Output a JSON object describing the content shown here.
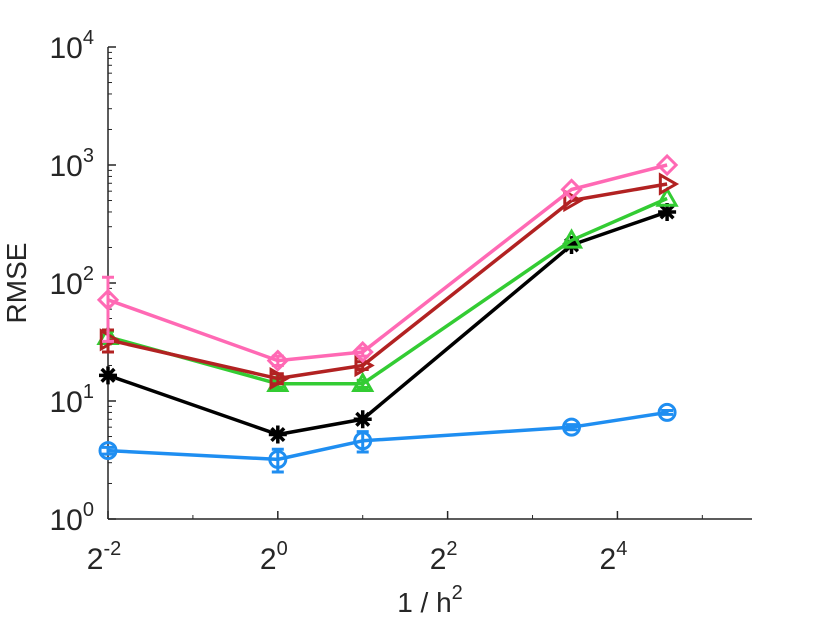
{
  "chart_data": {
    "type": "line",
    "title": "",
    "xlabel": {
      "base": "1 / h",
      "sup": "2"
    },
    "ylabel": "RMSE",
    "xscale": "log2",
    "yscale": "log10",
    "xlim": [
      0.25,
      48
    ],
    "ylim": [
      1,
      10000
    ],
    "grid": false,
    "xticks": [
      {
        "value": 0.25,
        "base": "2",
        "exp": "-2"
      },
      {
        "value": 1,
        "base": "2",
        "exp": "0"
      },
      {
        "value": 4,
        "base": "2",
        "exp": "2"
      },
      {
        "value": 16,
        "base": "2",
        "exp": "4"
      }
    ],
    "yticks": [
      {
        "value": 1,
        "base": "10",
        "exp": "0"
      },
      {
        "value": 10,
        "base": "10",
        "exp": "1"
      },
      {
        "value": 100,
        "base": "10",
        "exp": "2"
      },
      {
        "value": 1000,
        "base": "10",
        "exp": "3"
      },
      {
        "value": 10000,
        "base": "10",
        "exp": "4"
      }
    ],
    "x": [
      0.25,
      1,
      2,
      11,
      24
    ],
    "series": [
      {
        "name": "series-blue-circle",
        "color": "#1f8ef1",
        "marker": "circle",
        "values": [
          3.8,
          3.2,
          4.6,
          6.0,
          8.0
        ],
        "err": [
          0.25,
          0.7,
          0.9,
          0.3,
          0.3
        ]
      },
      {
        "name": "series-black-asterisk",
        "color": "#000000",
        "marker": "asterisk",
        "values": [
          16.5,
          5.2,
          7.0,
          210,
          400
        ],
        "err": [
          0,
          0,
          0,
          0,
          0
        ]
      },
      {
        "name": "series-green-triangle",
        "color": "#33cc33",
        "marker": "triangle-up",
        "values": [
          35,
          14,
          14,
          230,
          520
        ],
        "err": [
          4,
          1,
          1,
          0,
          0
        ]
      },
      {
        "name": "series-darkred-triangle",
        "color": "#b22222",
        "marker": "triangle-right",
        "values": [
          33,
          15.5,
          20,
          500,
          690
        ],
        "err": [
          7,
          1.5,
          1.5,
          0,
          0
        ]
      },
      {
        "name": "series-pink-diamond",
        "color": "#ff69b4",
        "marker": "diamond",
        "values": [
          72,
          22,
          26,
          620,
          1000
        ],
        "err": [
          40,
          2,
          2,
          0,
          0
        ]
      }
    ]
  }
}
